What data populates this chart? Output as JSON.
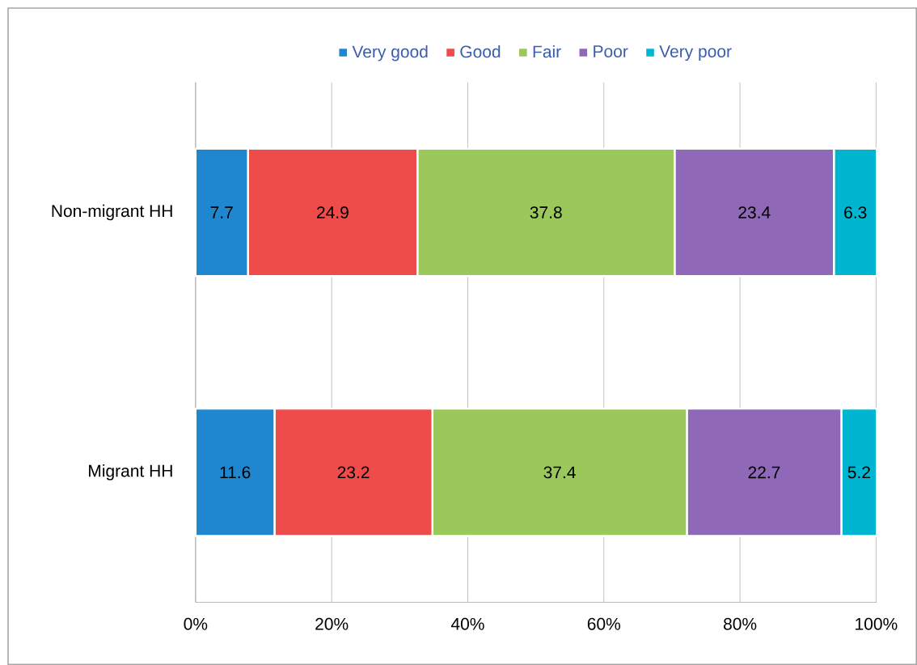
{
  "chart_data": {
    "type": "bar",
    "orientation": "horizontal",
    "stacked": true,
    "categories": [
      "Non-migrant HH",
      "Migrant HH"
    ],
    "series": [
      {
        "name": "Very good",
        "color": "#1f87d0",
        "values": [
          7.7,
          11.6
        ]
      },
      {
        "name": "Good",
        "color": "#ee4b4b",
        "values": [
          24.9,
          23.2
        ]
      },
      {
        "name": "Fair",
        "color": "#9bc85a",
        "values": [
          37.8,
          37.4
        ]
      },
      {
        "name": "Poor",
        "color": "#9068b8",
        "values": [
          23.4,
          22.7
        ]
      },
      {
        "name": "Very poor",
        "color": "#00b5d0",
        "values": [
          6.3,
          5.2
        ]
      }
    ],
    "xlim": [
      0,
      100.1
    ],
    "xticks": [
      {
        "value": 0,
        "label": "0%"
      },
      {
        "value": 20,
        "label": "20%"
      },
      {
        "value": 40,
        "label": "40%"
      },
      {
        "value": 60,
        "label": "60%"
      },
      {
        "value": 80,
        "label": "80%"
      },
      {
        "value": 100,
        "label": "100%"
      }
    ],
    "grid": "x",
    "legend": "top",
    "data_labels": true
  }
}
